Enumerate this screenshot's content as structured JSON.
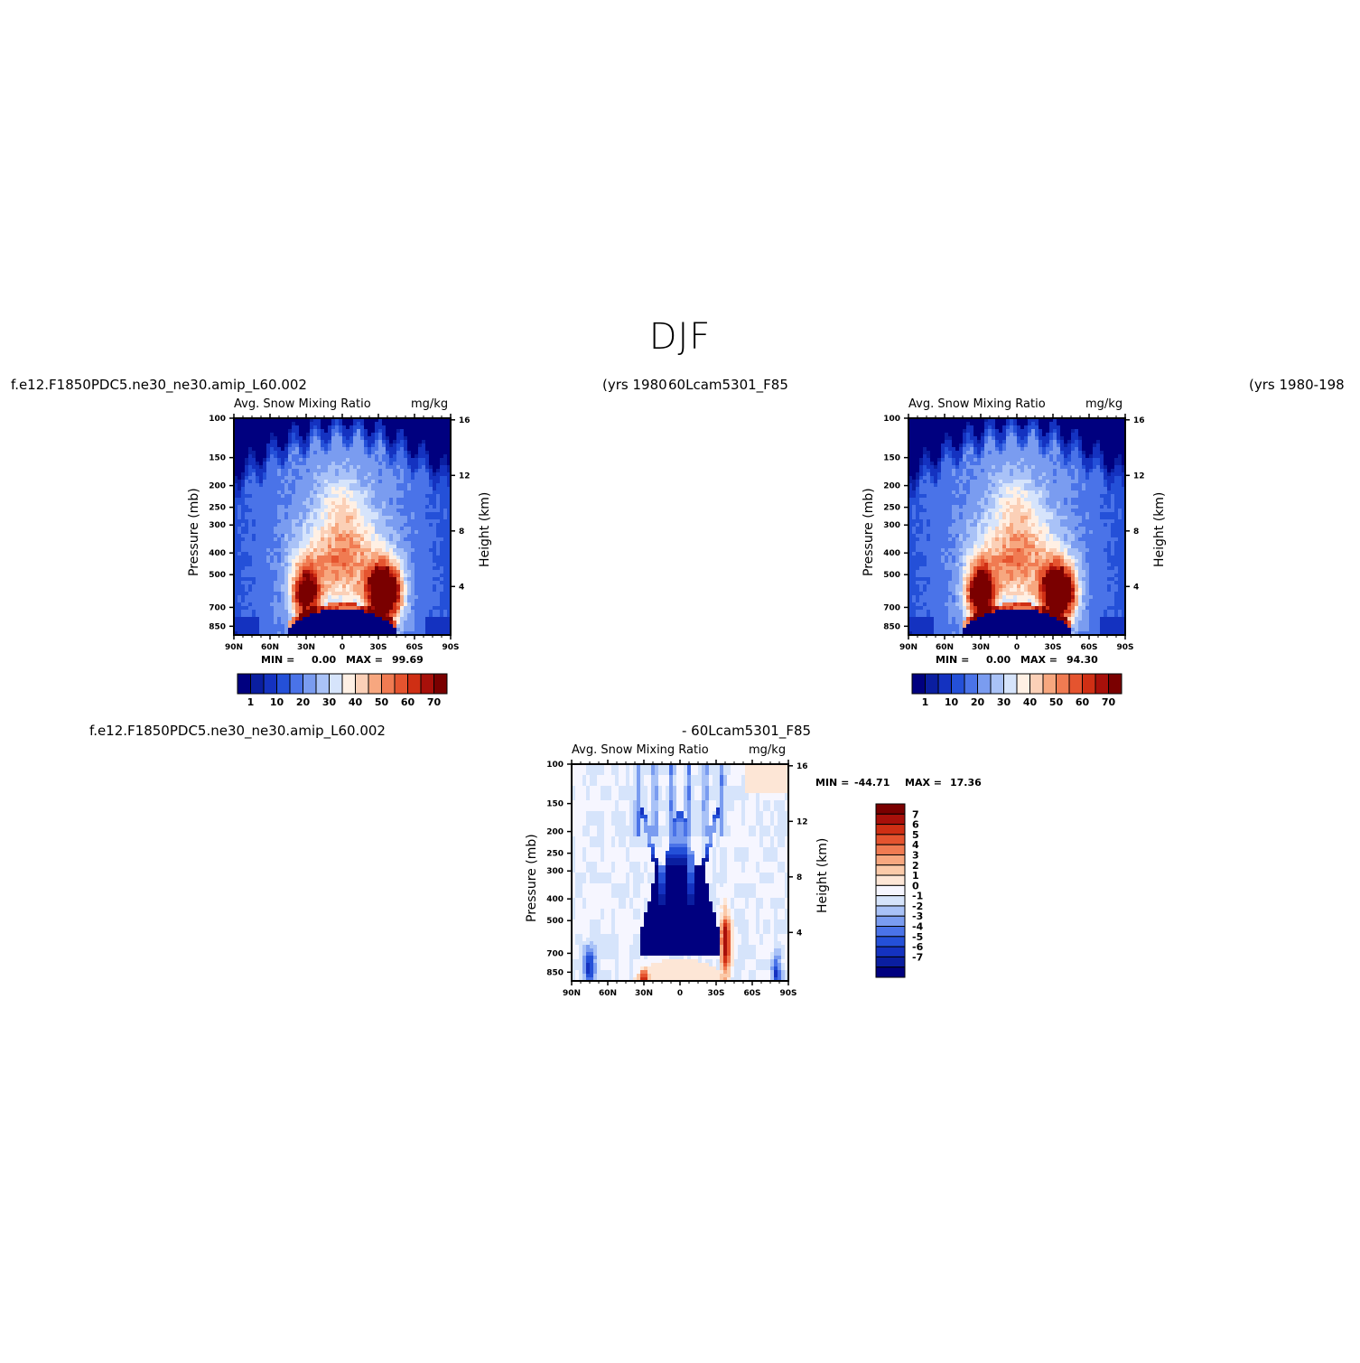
{
  "page": {
    "title": "DJF",
    "case_top_left": "f.e12.F1850PDC5.ne30_ne30.amip_L60.002",
    "years_top_left": "(yrs 1980",
    "case_top_right": "60Lcam5301_F85",
    "years_top_right": "(yrs 1980-198",
    "case_bottom_left": "f.e12.F1850PDC5.ne30_ne30.amip_L60.002",
    "case_bottom_right": "- 60Lcam5301_F85"
  },
  "chart_data": [
    {
      "type": "heatmap",
      "title_left": "Avg. Snow Mixing Ratio",
      "title_right": "mg/kg",
      "ylabel": "Pressure (mb)",
      "ylabel_right": "Height (km)",
      "x_ticks": [
        "90N",
        "60N",
        "30N",
        "0",
        "30S",
        "60S",
        "90S"
      ],
      "y_ticks": [
        "100",
        "150",
        "200",
        "250",
        "300",
        "400",
        "500",
        "700",
        "850"
      ],
      "y_ticks_right": [
        "16",
        "12",
        "8",
        "4"
      ],
      "min_label": "MIN =",
      "min_value": "0.00",
      "max_label": "MAX =",
      "max_value": "99.69",
      "colorbar_labels": [
        "1",
        "10",
        "20",
        "30",
        "40",
        "50",
        "60",
        "70"
      ],
      "peak_left": 60,
      "peak_right": 90,
      "peak_right_lat": -35,
      "peak_left_lat": 30
    },
    {
      "type": "heatmap",
      "title_left": "Avg. Snow Mixing Ratio",
      "title_right": "mg/kg",
      "ylabel": "Pressure (mb)",
      "ylabel_right": "Height (km)",
      "x_ticks": [
        "90N",
        "60N",
        "30N",
        "0",
        "30S",
        "60S",
        "90S"
      ],
      "y_ticks": [
        "100",
        "150",
        "200",
        "250",
        "300",
        "400",
        "500",
        "700",
        "850"
      ],
      "y_ticks_right": [
        "16",
        "12",
        "8",
        "4"
      ],
      "min_label": "MIN =",
      "min_value": "0.00",
      "max_label": "MAX =",
      "max_value": "94.30",
      "colorbar_labels": [
        "1",
        "10",
        "20",
        "30",
        "40",
        "50",
        "60",
        "70"
      ],
      "peak_left": 70,
      "peak_right": 88,
      "peak_right_lat": -35,
      "peak_left_lat": 30
    },
    {
      "type": "heatmap",
      "title_left": "Avg. Snow Mixing Ratio",
      "title_right": "mg/kg",
      "ylabel": "Pressure (mb)",
      "ylabel_right": "Height (km)",
      "x_ticks": [
        "90N",
        "60N",
        "30N",
        "0",
        "30S",
        "60S",
        "90S"
      ],
      "y_ticks": [
        "100",
        "150",
        "200",
        "250",
        "300",
        "400",
        "500",
        "700",
        "850"
      ],
      "y_ticks_right": [
        "16",
        "12",
        "8",
        "4"
      ],
      "min_label": "MIN =",
      "min_value": "-44.71",
      "max_label": "MAX =",
      "max_value": "17.36",
      "colorbar_labels": [
        "7",
        "6",
        "5",
        "4",
        "3",
        "2",
        "1",
        "0",
        "-1",
        "-2",
        "-3",
        "-4",
        "-5",
        "-6",
        "-7"
      ]
    }
  ],
  "colors": {
    "seq": [
      "#00007f",
      "#0a1ea0",
      "#1432c0",
      "#2450d8",
      "#4a73e8",
      "#7a9cf0",
      "#a9c2f7",
      "#d6e4fb",
      "#fff0e4",
      "#fbd0b7",
      "#f7a77f",
      "#f07b52",
      "#e5542f",
      "#cf2f14",
      "#a8100a",
      "#7a0000"
    ],
    "div": [
      "#00007f",
      "#0a1ea0",
      "#1432c0",
      "#2450d8",
      "#4a73e8",
      "#7a9cf0",
      "#a9c2f7",
      "#d6e4fb",
      "#f6f6ff",
      "#fde6d6",
      "#fbcaa9",
      "#f7a77f",
      "#f07b52",
      "#e5542f",
      "#cf2f14",
      "#a8100a",
      "#7a0000"
    ]
  }
}
